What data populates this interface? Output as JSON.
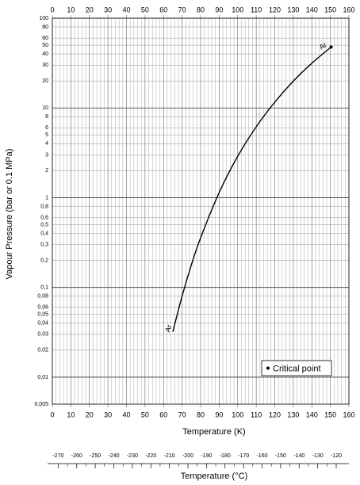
{
  "chart_data": {
    "type": "line",
    "xlabel": "Temperature (K)",
    "ylabel": "Vapour Pressure (bar or 0.1 MPa)",
    "xlim": [
      0,
      160
    ],
    "xticks": [
      0,
      10,
      20,
      30,
      40,
      50,
      60,
      70,
      80,
      90,
      100,
      110,
      120,
      130,
      140,
      150,
      160
    ],
    "ylim": [
      0.005,
      100
    ],
    "yscale": "log",
    "yticks": [
      {
        "value": 0.005,
        "label": "0,005"
      },
      {
        "value": 0.01,
        "label": "0,01"
      },
      {
        "value": 0.02,
        "label": "0,02"
      },
      {
        "value": 0.03,
        "label": "0,03"
      },
      {
        "value": 0.04,
        "label": "0,04"
      },
      {
        "value": 0.05,
        "label": "0,05"
      },
      {
        "value": 0.06,
        "label": "0,06"
      },
      {
        "value": 0.08,
        "label": "0,08"
      },
      {
        "value": 0.1,
        "label": "0,1"
      },
      {
        "value": 0.2,
        "label": "0,2"
      },
      {
        "value": 0.3,
        "label": "0,3"
      },
      {
        "value": 0.4,
        "label": "0,4"
      },
      {
        "value": 0.5,
        "label": "0,5"
      },
      {
        "value": 0.6,
        "label": "0,6"
      },
      {
        "value": 0.8,
        "label": "0,8"
      },
      1,
      2,
      3,
      4,
      5,
      6,
      8,
      10,
      20,
      30,
      40,
      50,
      60,
      80,
      100
    ],
    "grid": true,
    "series": [
      {
        "name": "Ar",
        "color": "#000000",
        "x": [
          65,
          70,
          75,
          80,
          90,
          100,
          110,
          120,
          130,
          140,
          150.4
        ],
        "values": [
          0.032,
          0.08,
          0.178,
          0.357,
          1.14,
          2.89,
          6.17,
          11.6,
          19.9,
          31.5,
          47.7
        ]
      }
    ],
    "critical_point": {
      "x": 150.4,
      "y": 47.7
    },
    "legend": {
      "label": "Critical point",
      "position": "lower right"
    },
    "x2label": "Temperature (°C)",
    "x2lim": [
      -273.15,
      -113.15
    ],
    "x2ticks": [
      -270,
      -260,
      -250,
      -240,
      -230,
      -220,
      -210,
      -200,
      -190,
      -180,
      -170,
      -160,
      -150,
      -140,
      -130,
      -120
    ]
  }
}
